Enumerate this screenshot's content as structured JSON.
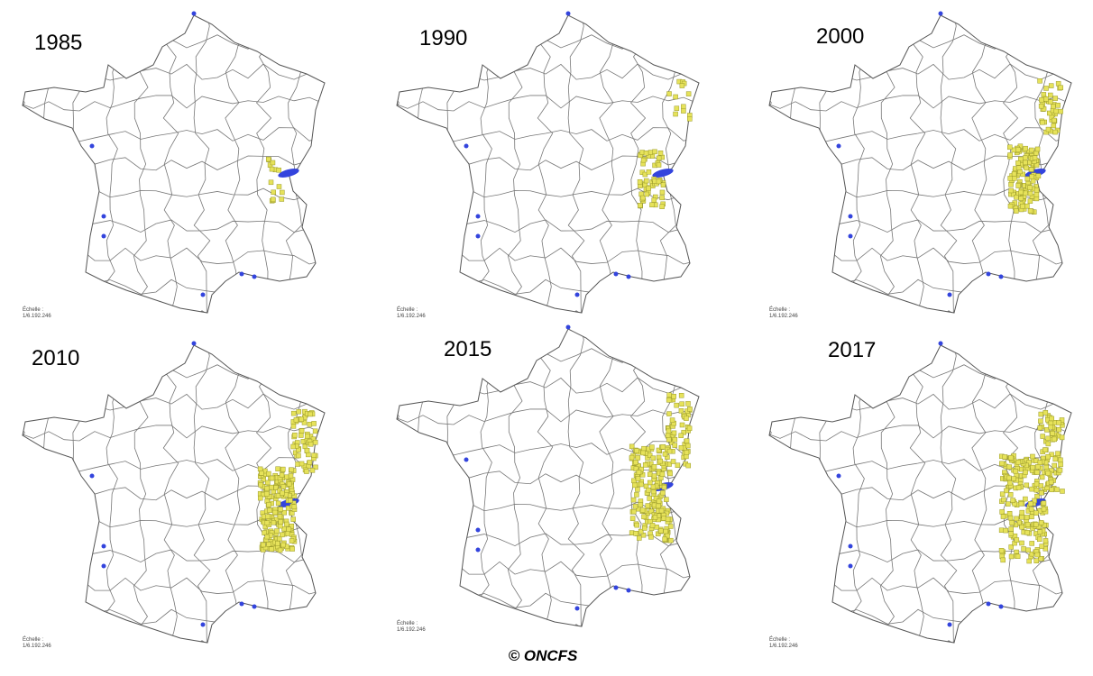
{
  "panels": [
    {
      "year": "1985",
      "scale_label": "Échelle :",
      "scale_value": "1/6.192.246"
    },
    {
      "year": "1990",
      "scale_label": "Échelle :",
      "scale_value": "1/6.192.246"
    },
    {
      "year": "2000",
      "scale_label": "Échelle :",
      "scale_value": "1/6.192.246"
    },
    {
      "year": "2010",
      "scale_label": "Échelle :",
      "scale_value": "1/6.192.246"
    },
    {
      "year": "2015",
      "scale_label": "Échelle :",
      "scale_value": "1/6.192.246"
    },
    {
      "year": "2017",
      "scale_label": "Échelle :",
      "scale_value": "1/6.192.246"
    }
  ],
  "credit": "© ONCFS"
}
